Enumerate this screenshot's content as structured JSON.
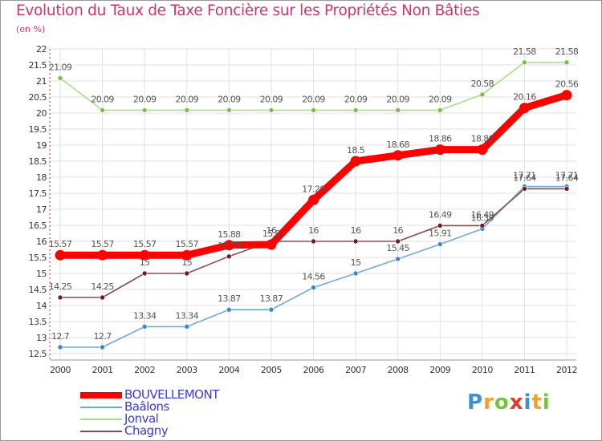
{
  "header": {
    "title": "Evolution du Taux de Taxe Foncière sur les Propriétés Non Bâties",
    "subtitle": "(en %)"
  },
  "logo": {
    "text": "Proxiti",
    "letters": [
      {
        "ch": "P",
        "color": "#3d8fd6"
      },
      {
        "ch": "r",
        "color": "#f0a12a"
      },
      {
        "ch": "o",
        "color": "#7ac143"
      },
      {
        "ch": "x",
        "color": "#e23b2e"
      },
      {
        "ch": "i",
        "color": "#3d8fd6"
      },
      {
        "ch": "t",
        "color": "#f0a12a"
      },
      {
        "ch": "i",
        "color": "#7ac143"
      }
    ]
  },
  "chart_data": {
    "type": "line",
    "title": "Evolution du Taux de Taxe Foncière sur les Propriétés Non Bâties",
    "ylabel": "(en %)",
    "xlabel": "",
    "x": [
      "2000",
      "2001",
      "2002",
      "2003",
      "2004",
      "2005",
      "2006",
      "2007",
      "2008",
      "2009",
      "2010",
      "2011",
      "2012"
    ],
    "ylim": [
      12.5,
      22
    ],
    "yticks": [
      "12.5",
      "13",
      "13.5",
      "14",
      "14.5",
      "15",
      "15.5",
      "16",
      "16.5",
      "17",
      "17.5",
      "18",
      "18.5",
      "19",
      "19.5",
      "20",
      "20.5",
      "21",
      "21.5",
      "22"
    ],
    "grid": true,
    "legend_position": "bottom-left",
    "series": [
      {
        "name": "BOUVELLEMONT",
        "color": "#ff0000",
        "emphasis": true,
        "values": [
          15.57,
          15.57,
          15.57,
          15.57,
          15.88,
          15.9,
          17.29,
          18.5,
          18.68,
          18.86,
          18.86,
          20.16,
          20.56
        ],
        "labels": [
          "15.57",
          "15.57",
          "15.57",
          "15.57",
          "15.88",
          "15.9",
          "17.29",
          "18.5",
          "18.68",
          "18.86",
          "18.86",
          "20.16",
          "20.56"
        ]
      },
      {
        "name": "Baâlons",
        "color": "#6fa8dc",
        "marker": "#3d85c6",
        "values": [
          12.7,
          12.7,
          13.34,
          13.34,
          13.87,
          13.87,
          14.56,
          15.0,
          15.45,
          15.91,
          16.39,
          17.71,
          17.71
        ],
        "labels": [
          "12.7",
          "12.7",
          "13.34",
          "13.34",
          "13.87",
          "13.87",
          "14.56",
          "15",
          "15.45",
          "15.91",
          "16.39",
          "17.71",
          "17.71"
        ]
      },
      {
        "name": "Jonval",
        "color": "#a6e085",
        "marker": "#7ac143",
        "values": [
          21.09,
          20.09,
          20.09,
          20.09,
          20.09,
          20.09,
          20.09,
          20.09,
          20.09,
          20.09,
          20.58,
          21.58,
          21.58
        ],
        "labels": [
          "21.09",
          "20.09",
          "20.09",
          "20.09",
          "20.09",
          "20.09",
          "20.09",
          "20.09",
          "20.09",
          "20.09",
          "20.58",
          "21.58",
          "21.58"
        ]
      },
      {
        "name": "Chagny",
        "color": "#8e4a52",
        "marker": "#6b1d25",
        "values": [
          14.25,
          14.25,
          15.0,
          15.0,
          15.53,
          16.0,
          16.0,
          16.0,
          16.0,
          16.49,
          16.49,
          17.64,
          17.64
        ],
        "labels": [
          "14.25",
          "14.25",
          "15",
          "15",
          "15.53",
          "16",
          "16",
          "16",
          "16",
          "16.49",
          "16.49",
          "17.64",
          "17.64"
        ]
      }
    ]
  }
}
